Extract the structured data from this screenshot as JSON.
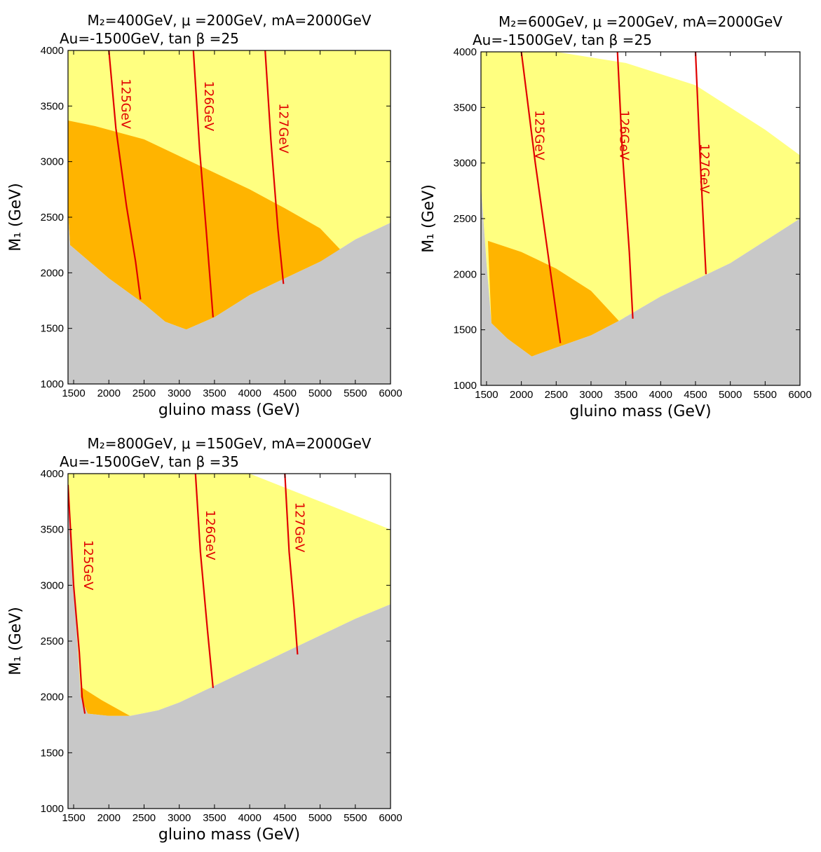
{
  "colors": {
    "allowed": "#ffff80",
    "favored": "#ffb400",
    "excluded": "#c8c8c8",
    "contour": "#e00000"
  },
  "chart_data": [
    {
      "type": "contour",
      "title_line1": "M₂=400GeV,  μ =200GeV, mA=2000GeV",
      "title_line2": "Au=-1500GeV, tan β =25",
      "xlabel": "gluino mass (GeV)",
      "ylabel": "M₁ (GeV)",
      "xlim": [
        1420,
        6000
      ],
      "ylim": [
        1000,
        4000
      ],
      "xticks": [
        1500,
        2000,
        2500,
        3000,
        3500,
        4000,
        4500,
        5000,
        5500,
        6000
      ],
      "yticks": [
        1000,
        1500,
        2000,
        2500,
        3000,
        3500,
        4000
      ],
      "grid": false,
      "regions": {
        "excluded_boundary": [
          [
            1420,
            2550
          ],
          [
            1450,
            2250
          ],
          [
            2000,
            1950
          ],
          [
            2500,
            1720
          ],
          [
            2800,
            1560
          ],
          [
            3100,
            1490
          ],
          [
            3500,
            1600
          ],
          [
            4000,
            1800
          ],
          [
            4500,
            1950
          ],
          [
            5000,
            2100
          ],
          [
            5500,
            2300
          ],
          [
            6000,
            2450
          ]
        ],
        "yellow_upper_boundary": [
          [
            1420,
            4000
          ],
          [
            6000,
            4000
          ]
        ],
        "orange_boundary": [
          [
            1420,
            3370
          ],
          [
            1800,
            3320
          ],
          [
            2500,
            3200
          ],
          [
            3000,
            3050
          ],
          [
            3500,
            2900
          ],
          [
            4000,
            2750
          ],
          [
            4500,
            2580
          ],
          [
            5000,
            2400
          ],
          [
            5300,
            2200
          ]
        ]
      },
      "contours": [
        {
          "label": "125GeV",
          "points": [
            [
              2000,
              4000
            ],
            [
              2100,
              3300
            ],
            [
              2250,
              2600
            ],
            [
              2380,
              2100
            ],
            [
              2450,
              1760
            ]
          ],
          "label_at": [
            2180,
            3520
          ]
        },
        {
          "label": "126GeV",
          "points": [
            [
              3200,
              4000
            ],
            [
              3290,
              3100
            ],
            [
              3380,
              2400
            ],
            [
              3480,
              1600
            ]
          ],
          "label_at": [
            3360,
            3500
          ]
        },
        {
          "label": "127GeV",
          "points": [
            [
              4220,
              4000
            ],
            [
              4300,
              3200
            ],
            [
              4400,
              2400
            ],
            [
              4480,
              1900
            ]
          ],
          "label_at": [
            4420,
            3300
          ]
        }
      ]
    },
    {
      "type": "contour",
      "title_line1": "M₂=600GeV,  μ =200GeV, mA=2000GeV",
      "title_line2": "Au=-1500GeV, tan β =25",
      "xlabel": "gluino mass (GeV)",
      "ylabel": "M₁ (GeV)",
      "xlim": [
        1420,
        6000
      ],
      "ylim": [
        1000,
        4000
      ],
      "xticks": [
        1500,
        2000,
        2500,
        3000,
        3500,
        4000,
        4500,
        5000,
        5500,
        6000
      ],
      "yticks": [
        1000,
        1500,
        2000,
        2500,
        3000,
        3500,
        4000
      ],
      "grid": false,
      "regions": {
        "excluded_boundary": [
          [
            1420,
            2800
          ],
          [
            1500,
            2100
          ],
          [
            1570,
            1560
          ],
          [
            1800,
            1420
          ],
          [
            2150,
            1260
          ],
          [
            2500,
            1340
          ],
          [
            3000,
            1450
          ],
          [
            3400,
            1580
          ],
          [
            4000,
            1800
          ],
          [
            4500,
            1950
          ],
          [
            5000,
            2100
          ],
          [
            5500,
            2300
          ],
          [
            6000,
            2500
          ]
        ],
        "yellow_upper_boundary": [
          [
            1420,
            4000
          ],
          [
            2500,
            4000
          ],
          [
            3500,
            3900
          ],
          [
            4500,
            3700
          ],
          [
            5500,
            3300
          ],
          [
            6000,
            3070
          ]
        ],
        "orange_boundary": [
          [
            1520,
            2300
          ],
          [
            2000,
            2200
          ],
          [
            2500,
            2050
          ],
          [
            3000,
            1850
          ],
          [
            3400,
            1580
          ]
        ]
      },
      "contours": [
        {
          "label": "125GeV",
          "points": [
            [
              2000,
              4000
            ],
            [
              2200,
              3000
            ],
            [
              2400,
              2100
            ],
            [
              2560,
              1380
            ]
          ],
          "label_at": [
            2200,
            3250
          ]
        },
        {
          "label": "126GeV",
          "points": [
            [
              3380,
              4000
            ],
            [
              3450,
              3100
            ],
            [
              3550,
              2200
            ],
            [
              3600,
              1600
            ]
          ],
          "label_at": [
            3420,
            3250
          ]
        },
        {
          "label": "127GeV",
          "points": [
            [
              4500,
              4000
            ],
            [
              4570,
              3000
            ],
            [
              4650,
              2000
            ]
          ],
          "label_at": [
            4570,
            2950
          ]
        }
      ]
    },
    {
      "type": "contour",
      "title_line1": "M₂=800GeV,  μ =150GeV, mA=2000GeV",
      "title_line2": "Au=-1500GeV, tan β =35",
      "xlabel": "gluino mass (GeV)",
      "ylabel": "M₁ (GeV)",
      "xlim": [
        1420,
        6000
      ],
      "ylim": [
        1000,
        4000
      ],
      "xticks": [
        1500,
        2000,
        2500,
        3000,
        3500,
        4000,
        4500,
        5000,
        5500,
        6000
      ],
      "yticks": [
        1000,
        1500,
        2000,
        2500,
        3000,
        3500,
        4000
      ],
      "grid": false,
      "regions": {
        "excluded_boundary": [
          [
            1420,
            3900
          ],
          [
            1500,
            3000
          ],
          [
            1550,
            2500
          ],
          [
            1600,
            2000
          ],
          [
            1700,
            1850
          ],
          [
            2000,
            1830
          ],
          [
            2300,
            1830
          ],
          [
            2700,
            1880
          ],
          [
            3000,
            1950
          ],
          [
            3500,
            2100
          ],
          [
            4000,
            2250
          ],
          [
            4500,
            2400
          ],
          [
            5000,
            2550
          ],
          [
            5500,
            2700
          ],
          [
            6000,
            2830
          ]
        ],
        "yellow_upper_boundary": [
          [
            1420,
            4000
          ],
          [
            4000,
            4000
          ],
          [
            5000,
            3750
          ],
          [
            6000,
            3500
          ]
        ],
        "orange_boundary": [
          [
            1600,
            2090
          ],
          [
            1900,
            1970
          ],
          [
            2300,
            1830
          ]
        ]
      },
      "contours": [
        {
          "label": "125GeV",
          "points": [
            [
              1420,
              3900
            ],
            [
              1500,
              3000
            ],
            [
              1580,
              2400
            ],
            [
              1620,
              2000
            ],
            [
              1660,
              1850
            ]
          ],
          "label_at": [
            1650,
            3180
          ]
        },
        {
          "label": "126GeV",
          "points": [
            [
              3230,
              4000
            ],
            [
              3300,
              3300
            ],
            [
              3400,
              2600
            ],
            [
              3480,
              2080
            ]
          ],
          "label_at": [
            3380,
            3450
          ]
        },
        {
          "label": "127GeV",
          "points": [
            [
              4500,
              4000
            ],
            [
              4560,
              3300
            ],
            [
              4630,
              2800
            ],
            [
              4680,
              2380
            ]
          ],
          "label_at": [
            4650,
            3520
          ]
        }
      ]
    }
  ]
}
